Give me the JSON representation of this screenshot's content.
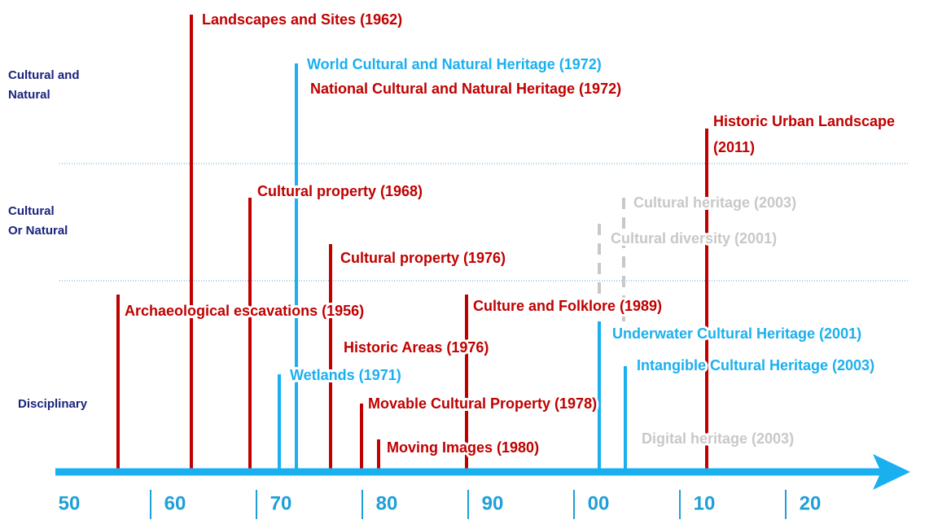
{
  "rows": [
    {
      "lines": [
        "Cultural and",
        "Natural"
      ]
    },
    {
      "lines": [
        "Cultural",
        "Or Natural"
      ]
    },
    {
      "lines": [
        "Disciplinary"
      ]
    }
  ],
  "events": [
    {
      "lines": [
        "Archaeological escavations (1956)"
      ]
    },
    {
      "lines": [
        "Landscapes and Sites (1962)"
      ]
    },
    {
      "lines": [
        "World Cultural and Natural Heritage (1972)"
      ]
    },
    {
      "lines": [
        "National Cultural and Natural Heritage (1972)"
      ]
    },
    {
      "lines": [
        "Cultural property (1968)"
      ]
    },
    {
      "lines": [
        "Cultural property (1976)"
      ]
    },
    {
      "lines": [
        "Historic Areas (1976)"
      ]
    },
    {
      "lines": [
        "Wetlands (1971)"
      ]
    },
    {
      "lines": [
        "Movable Cultural Property (1978)"
      ]
    },
    {
      "lines": [
        "Moving Images (1980)"
      ]
    },
    {
      "lines": [
        "Culture and Folklore (1989)"
      ]
    },
    {
      "lines": [
        "Underwater Cultural Heritage (2001)"
      ]
    },
    {
      "lines": [
        "Intangible Cultural Heritage (2003)"
      ]
    },
    {
      "lines": [
        "Historic Urban Landscape",
        "(2011)"
      ]
    },
    {
      "lines": [
        "Cultural heritage (2003)"
      ]
    },
    {
      "lines": [
        "Cultural diversity (2001)"
      ]
    },
    {
      "lines": [
        "Digital heritage (2003)"
      ]
    }
  ],
  "decades": [
    "50",
    "60",
    "70",
    "80",
    "90",
    "00",
    "10",
    "20"
  ]
}
